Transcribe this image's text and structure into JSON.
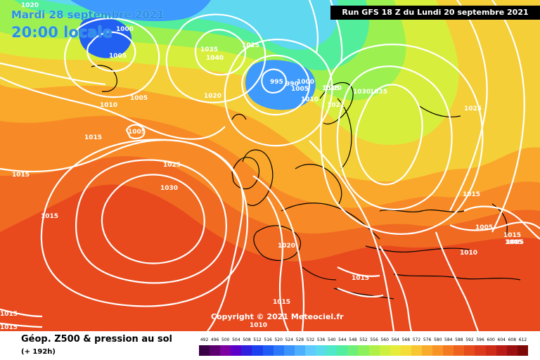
{
  "header": {
    "date": "Mardi 28 septembre 2021",
    "time": "20:00 locale",
    "run": "Run GFS 18 Z du Lundi 20 septembre 2021"
  },
  "copyright": "Copyright © 2021 Meteociel.fr",
  "legend": {
    "title": "Géop. Z500 & pression au sol",
    "subtitle": "(+ 192h)",
    "scale_values": [
      "492",
      "496",
      "500",
      "504",
      "508",
      "512",
      "516",
      "520",
      "524",
      "528",
      "532",
      "536",
      "540",
      "544",
      "548",
      "552",
      "556",
      "560",
      "564",
      "568",
      "572",
      "576",
      "580",
      "584",
      "588",
      "592",
      "596",
      "600",
      "604",
      "608",
      "612"
    ],
    "scale_colors": [
      "#3a0045",
      "#5c0070",
      "#7d00a0",
      "#5a00c8",
      "#2f20e0",
      "#1c40f0",
      "#1e5df5",
      "#2b78fa",
      "#3b94fc",
      "#4db0fe",
      "#5ecaff",
      "#58dceb",
      "#4fe8c8",
      "#52eea0",
      "#6cf07a",
      "#8cf05a",
      "#aef048",
      "#cdf03e",
      "#e6ec3a",
      "#f4dd38",
      "#f8c632",
      "#f9ac2c",
      "#f89426",
      "#f47a22",
      "#ee621e",
      "#e64c1c",
      "#dc3a1a",
      "#cf2c18",
      "#b81c14",
      "#9c1010",
      "#7e0808"
    ]
  },
  "isobars": [
    "1020",
    "1000",
    "1005",
    "1005",
    "1010",
    "1005",
    "1015",
    "1015",
    "1025",
    "1030",
    "1015",
    "1035",
    "1040",
    "1025",
    "1020",
    "995",
    "990",
    "1000",
    "1005",
    "1010",
    "1010",
    "1015",
    "1021",
    "1030",
    "1035",
    "1025",
    "1015",
    "1005",
    "1005",
    "1010",
    "1015",
    "1020",
    "1015",
    "1015",
    "1010",
    "1015",
    "1015",
    "1005"
  ]
}
